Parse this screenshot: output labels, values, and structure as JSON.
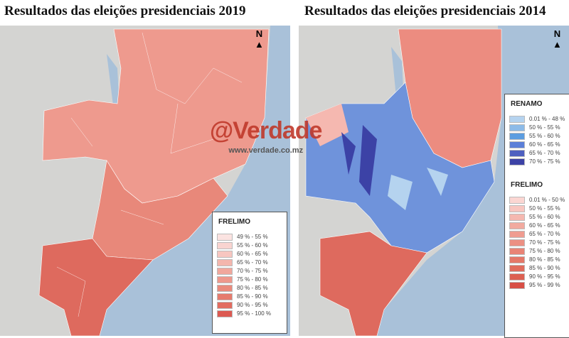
{
  "titles": {
    "left": "Resultados das eleições presidenciais 2019",
    "right": "Resultados das eleições presidenciais 2014"
  },
  "north_label": "N",
  "watermark": {
    "brand": "@Verdade",
    "url": "www.verdade.co.mz"
  },
  "colors": {
    "sea": "#a9c1d9",
    "land": "#d6d6d6",
    "frelimo": "#e0695e",
    "renamo": "#5b6fd0"
  },
  "legend_2019": {
    "title": "FRELIMO",
    "items": [
      {
        "label": "49 % - 55 %",
        "color": "#fbe3e1"
      },
      {
        "label": "55 % - 60 %",
        "color": "#f9d4d0"
      },
      {
        "label": "60 % - 65 %",
        "color": "#f7c6c0"
      },
      {
        "label": "65 % - 70 %",
        "color": "#f4b6ad"
      },
      {
        "label": "70 % - 75 %",
        "color": "#f1a79c"
      },
      {
        "label": "75 % - 80 %",
        "color": "#ee988c"
      },
      {
        "label": "80 % - 85 %",
        "color": "#ea8a7c"
      },
      {
        "label": "85 % - 90 %",
        "color": "#e67b6d"
      },
      {
        "label": "90 % - 95 %",
        "color": "#e26c60"
      },
      {
        "label": "95 % - 100 %",
        "color": "#dc5a52"
      }
    ]
  },
  "legend_2014": {
    "renamo": {
      "title": "RENAMO",
      "items": [
        {
          "label": "0.01 % - 48 %",
          "color": "#b5d3ef"
        },
        {
          "label": "50 % - 55 %",
          "color": "#8dbbe8"
        },
        {
          "label": "55 % - 60 %",
          "color": "#5c9de0"
        },
        {
          "label": "60 % - 65 %",
          "color": "#5b7fd8"
        },
        {
          "label": "65 % - 70 %",
          "color": "#4e60c0"
        },
        {
          "label": "70 % - 75 %",
          "color": "#3c42a6"
        }
      ]
    },
    "frelimo": {
      "title": "FRELIMO",
      "items": [
        {
          "label": "0.01 % - 50 %",
          "color": "#fbd6d2"
        },
        {
          "label": "50 % - 55 %",
          "color": "#f8c6c0"
        },
        {
          "label": "55 % - 60 %",
          "color": "#f5b8b0"
        },
        {
          "label": "60 % - 65 %",
          "color": "#f2aa9f"
        },
        {
          "label": "65 % - 70 %",
          "color": "#ef9c90"
        },
        {
          "label": "70 % - 75 %",
          "color": "#ec9083"
        },
        {
          "label": "75 % - 80 %",
          "color": "#e98476"
        },
        {
          "label": "80 % - 85 %",
          "color": "#e57869"
        },
        {
          "label": "85 % - 90 %",
          "color": "#e16c5d"
        },
        {
          "label": "90 % - 95 %",
          "color": "#dd6052"
        },
        {
          "label": "95 % - 99 %",
          "color": "#d84f46"
        }
      ]
    }
  }
}
